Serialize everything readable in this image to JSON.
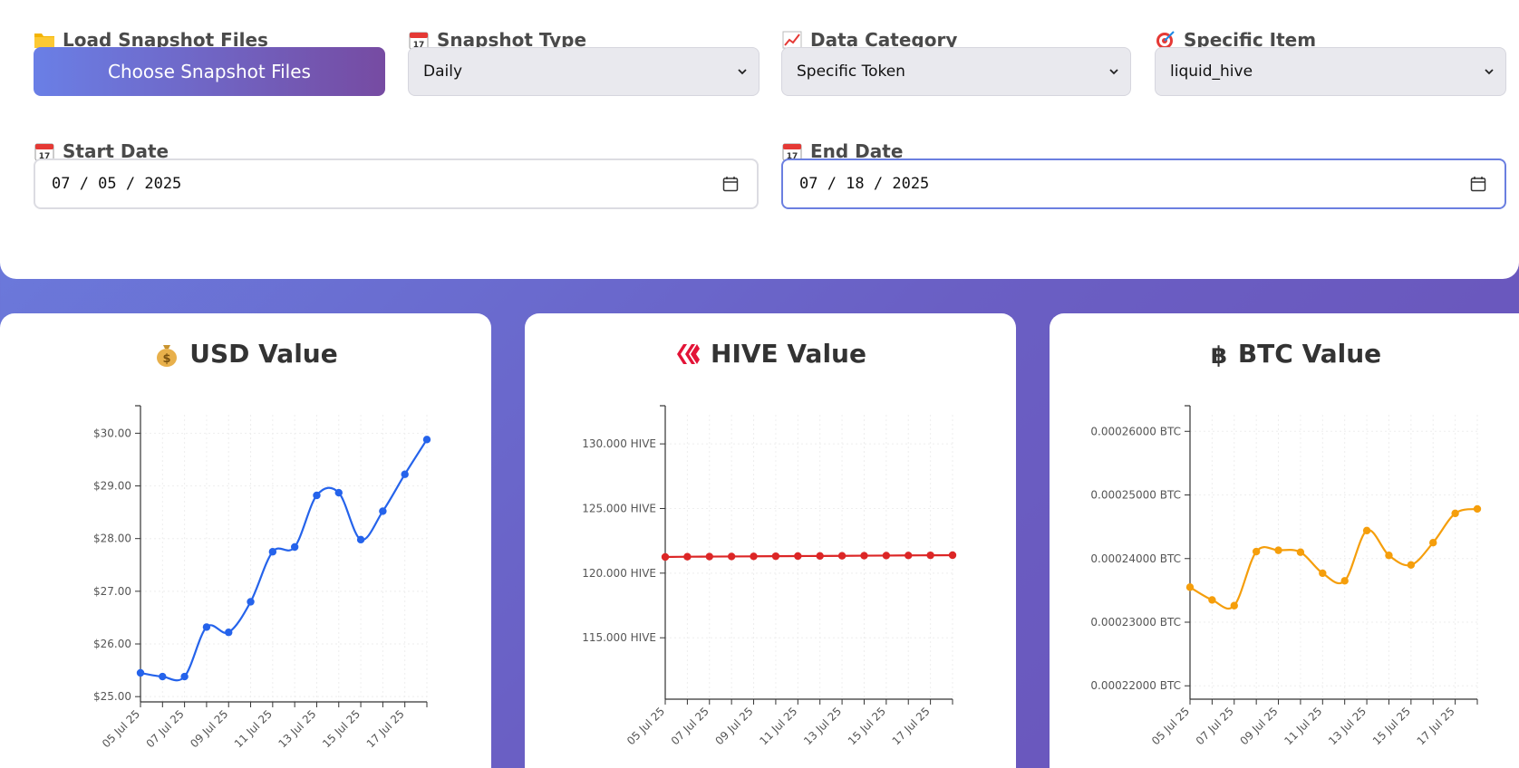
{
  "controls": {
    "load_label": "Load Snapshot Files",
    "load_button": "Choose Snapshot Files",
    "type_label": "Snapshot Type",
    "type_value": "Daily",
    "category_label": "Data Category",
    "category_value": "Specific Token",
    "item_label": "Specific Item",
    "item_value": "liquid_hive",
    "start_label": "Start Date",
    "start_value": "07 / 05 / 2025",
    "end_label": "End Date",
    "end_value": "07 / 18 / 2025"
  },
  "icons": {
    "load": "folder-icon",
    "type": "calendar-icon",
    "category": "chart-increasing-icon",
    "item": "target-icon",
    "start": "calendar-icon",
    "end": "calendar-icon",
    "usd": "money-bag-icon",
    "hive": "hive-logo-icon",
    "btc": "bitcoin-icon"
  },
  "chart_data": [
    {
      "type": "line",
      "title": "USD Value",
      "color": "#2563eb",
      "x": [
        "05 Jul 25",
        "06 Jul 25",
        "07 Jul 25",
        "08 Jul 25",
        "09 Jul 25",
        "10 Jul 25",
        "11 Jul 25",
        "12 Jul 25",
        "13 Jul 25",
        "14 Jul 25",
        "15 Jul 25",
        "16 Jul 25",
        "17 Jul 25",
        "18 Jul 25"
      ],
      "x_tick_labels": [
        "05 Jul 25",
        "07 Jul 25",
        "09 Jul 25",
        "11 Jul 25",
        "13 Jul 25",
        "15 Jul 25",
        "17 Jul 25"
      ],
      "values": [
        25.45,
        25.38,
        25.38,
        26.32,
        26.22,
        26.8,
        27.75,
        27.84,
        28.82,
        28.87,
        27.98,
        28.52,
        29.22,
        29.88
      ],
      "ylim": [
        24.9,
        30.35
      ],
      "y_ticks": [
        25,
        26,
        27,
        28,
        29,
        30
      ],
      "y_tick_labels": [
        "$25.00",
        "$26.00",
        "$27.00",
        "$28.00",
        "$29.00",
        "$30.00"
      ]
    },
    {
      "type": "line",
      "title": "HIVE Value",
      "color": "#dc2626",
      "x": [
        "05 Jul 25",
        "06 Jul 25",
        "07 Jul 25",
        "08 Jul 25",
        "09 Jul 25",
        "10 Jul 25",
        "11 Jul 25",
        "12 Jul 25",
        "13 Jul 25",
        "14 Jul 25",
        "15 Jul 25",
        "16 Jul 25",
        "17 Jul 25",
        "18 Jul 25"
      ],
      "x_tick_labels": [
        "05 Jul 25",
        "07 Jul 25",
        "09 Jul 25",
        "11 Jul 25",
        "13 Jul 25",
        "15 Jul 25",
        "17 Jul 25"
      ],
      "values": [
        121.25,
        121.27,
        121.28,
        121.29,
        121.3,
        121.31,
        121.32,
        121.33,
        121.34,
        121.35,
        121.36,
        121.37,
        121.38,
        121.39
      ],
      "ylim": [
        110.25,
        132.25
      ],
      "y_ticks": [
        115,
        120,
        125,
        130
      ],
      "y_tick_labels": [
        "115.000 HIVE",
        "120.000 HIVE",
        "125.000 HIVE",
        "130.000 HIVE"
      ]
    },
    {
      "type": "line",
      "title": "BTC Value",
      "color": "#f59e0b",
      "x": [
        "05 Jul 25",
        "06 Jul 25",
        "07 Jul 25",
        "08 Jul 25",
        "09 Jul 25",
        "10 Jul 25",
        "11 Jul 25",
        "12 Jul 25",
        "13 Jul 25",
        "14 Jul 25",
        "15 Jul 25",
        "16 Jul 25",
        "17 Jul 25",
        "18 Jul 25"
      ],
      "x_tick_labels": [
        "05 Jul 25",
        "07 Jul 25",
        "09 Jul 25",
        "11 Jul 25",
        "13 Jul 25",
        "15 Jul 25",
        "17 Jul 25"
      ],
      "values": [
        0.0002355,
        0.0002335,
        0.0002326,
        0.0002411,
        0.0002413,
        0.000241,
        0.0002377,
        0.0002365,
        0.0002444,
        0.0002405,
        0.000239,
        0.0002425,
        0.0002471,
        0.0002478
      ],
      "ylim": [
        0.0002179,
        0.0002626
      ],
      "y_ticks": [
        0.00022,
        0.00023,
        0.00024,
        0.00025,
        0.00026
      ],
      "y_tick_labels": [
        "0.00022000 BTC",
        "0.00023000 BTC",
        "0.00024000 BTC",
        "0.00025000 BTC",
        "0.00026000 BTC"
      ]
    }
  ]
}
